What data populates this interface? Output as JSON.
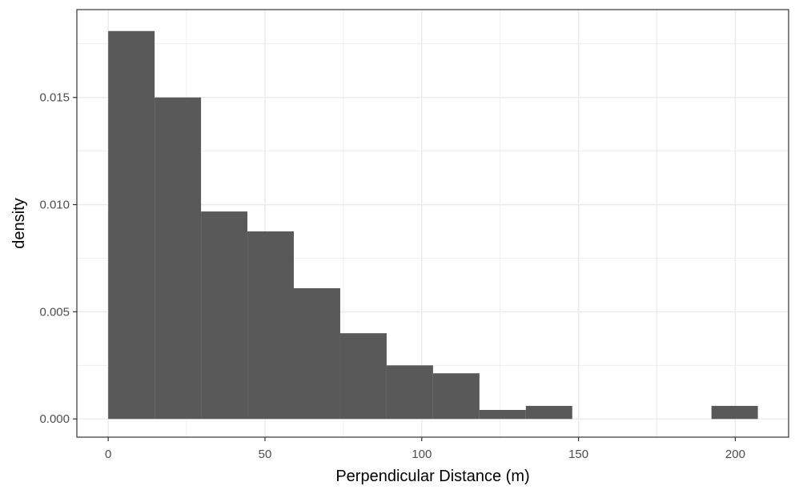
{
  "chart_data": {
    "type": "bar",
    "subtype": "histogram",
    "xlabel": "Perpendicular Distance (m)",
    "ylabel": "density",
    "xlim": [
      -10,
      217
    ],
    "ylim": [
      -0.00085,
      0.0191
    ],
    "x_ticks": [
      {
        "value": 0,
        "label": "0"
      },
      {
        "value": 50,
        "label": "50"
      },
      {
        "value": 100,
        "label": "100"
      },
      {
        "value": 150,
        "label": "150"
      },
      {
        "value": 200,
        "label": "200"
      }
    ],
    "y_ticks": [
      {
        "value": 0,
        "label": "0.000"
      },
      {
        "value": 0.005,
        "label": "0.005"
      },
      {
        "value": 0.01,
        "label": "0.010"
      },
      {
        "value": 0.015,
        "label": "0.015"
      }
    ],
    "minor_x": [
      25,
      75,
      125,
      175
    ],
    "minor_y": [
      0.0025,
      0.0075,
      0.0125,
      0.0175
    ],
    "bins": [
      {
        "x0": 0,
        "x1": 14.8,
        "density": 0.0181
      },
      {
        "x0": 14.8,
        "x1": 29.6,
        "density": 0.015
      },
      {
        "x0": 29.6,
        "x1": 44.4,
        "density": 0.00968
      },
      {
        "x0": 44.4,
        "x1": 59.2,
        "density": 0.00875
      },
      {
        "x0": 59.2,
        "x1": 74.0,
        "density": 0.0061
      },
      {
        "x0": 74.0,
        "x1": 88.8,
        "density": 0.004
      },
      {
        "x0": 88.8,
        "x1": 103.6,
        "density": 0.0025
      },
      {
        "x0": 103.6,
        "x1": 118.4,
        "density": 0.00213
      },
      {
        "x0": 118.4,
        "x1": 133.2,
        "density": 0.00042
      },
      {
        "x0": 133.2,
        "x1": 148.0,
        "density": 0.00061
      },
      {
        "x0": 192.4,
        "x1": 207.2,
        "density": 0.00061
      }
    ],
    "bar_color": "#595959",
    "grid": true,
    "grid_color": "#ebebeb",
    "panel_border_color": "#333333",
    "legend": "none"
  }
}
